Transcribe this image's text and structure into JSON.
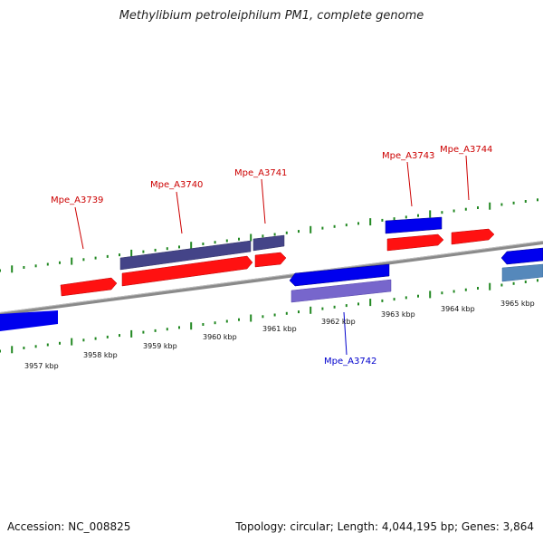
{
  "header": {
    "title": "Methylibium petroleiphilum PM1, complete genome"
  },
  "footer": {
    "accession": "Accession: NC_008825",
    "summary": "Topology: circular; Length: 4,044,195 bp; Genes: 3,864"
  },
  "colors": {
    "forward_gene": "#ff0000",
    "reverse_gene": "#0000ee",
    "forward_cds": "#444488",
    "reverse_cds": "#7766cc",
    "other_feature": "#5588bb",
    "backbone": "#888888",
    "ticks": "#228822",
    "label_forward": "#cc0000",
    "label_reverse": "#0000cc"
  },
  "scale": {
    "tick_labels": [
      "3957 kbp",
      "3958 kbp",
      "3959 kbp",
      "3960 kbp",
      "3961 kbp",
      "3962 kbp",
      "3963 kbp",
      "3964 kbp",
      "3965 kbp"
    ]
  },
  "genes": [
    {
      "label": "Mpe_A3739",
      "strand": "forward"
    },
    {
      "label": "Mpe_A3740",
      "strand": "forward"
    },
    {
      "label": "Mpe_A3741",
      "strand": "forward"
    },
    {
      "label": "Mpe_A3742",
      "strand": "reverse"
    },
    {
      "label": "Mpe_A3743",
      "strand": "forward"
    },
    {
      "label": "Mpe_A3744",
      "strand": "forward"
    }
  ]
}
